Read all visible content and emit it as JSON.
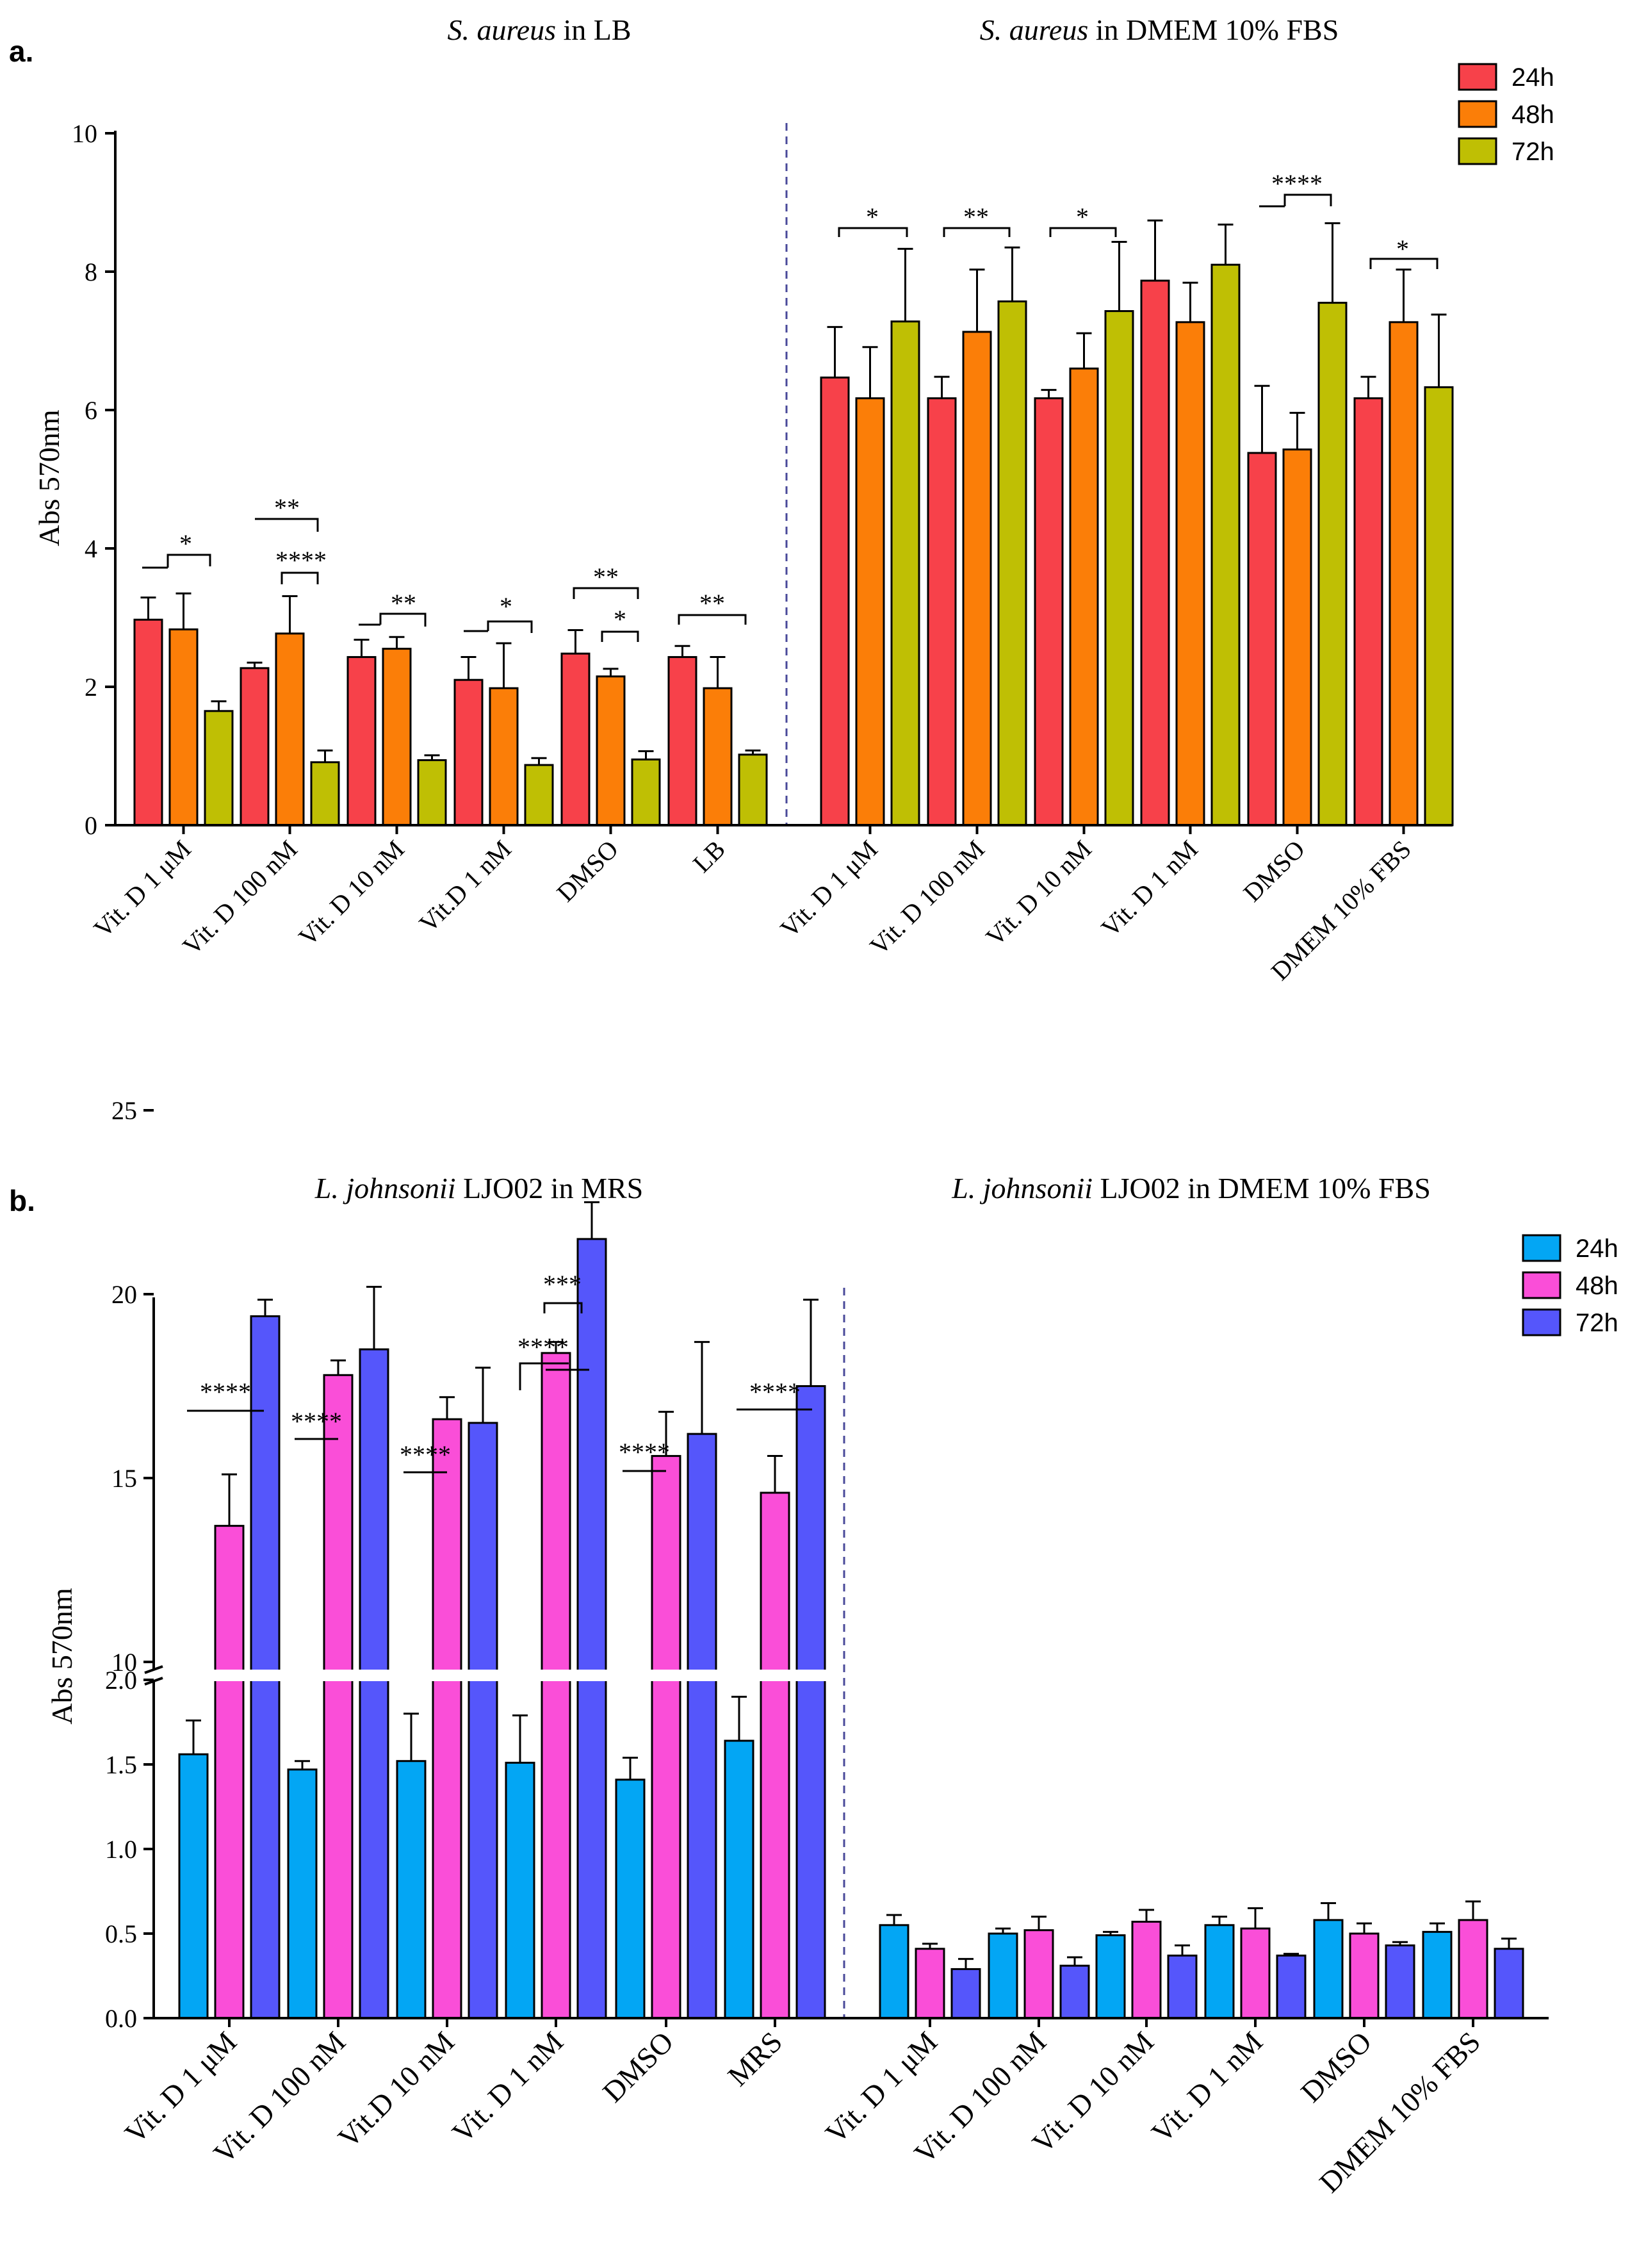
{
  "panels": [
    {
      "id": "a",
      "panel_label": "a.",
      "group_titles": [
        {
          "italic": "S. aureus",
          "rest": " in LB"
        },
        {
          "italic": "S. aureus",
          "rest": " in DMEM 10% FBS"
        }
      ]
    },
    {
      "id": "b",
      "panel_label": "b.",
      "group_titles": [
        {
          "italic": "L. johnsonii",
          "rest": " LJO02 in MRS"
        },
        {
          "italic": "L. johnsonii",
          "rest": " LJO02 in DMEM 10% FBS"
        }
      ]
    }
  ],
  "chart_data": [
    {
      "type": "bar",
      "panel": "a",
      "ylabel": "Abs 570nm",
      "xlabel": "",
      "ylim": [
        0,
        10
      ],
      "yticks": [
        "0",
        "2",
        "4",
        "6",
        "8",
        "10"
      ],
      "categories": [
        "Vit. D 1 μM",
        "Vit. D 100 nM",
        "Vit. D 10 nM",
        "Vit.D 1 nM",
        "DMSO",
        "LB",
        "Vit. D 1 μM",
        "Vit. D 100 nM",
        "Vit. D 10 nM",
        "Vit. D 1 nM",
        "DMSO",
        "DMEM 10% FBS"
      ],
      "legend": {
        "position": "top-right",
        "entries": [
          "24h",
          "48h",
          "72h"
        ]
      },
      "series": [
        {
          "name": "24h",
          "color": "#f7414a",
          "values": [
            2.97,
            2.27,
            2.43,
            2.1,
            2.48,
            2.43,
            6.47,
            6.17,
            6.17,
            7.87,
            5.38,
            6.17
          ],
          "errors": [
            0.32,
            0.08,
            0.25,
            0.33,
            0.34,
            0.16,
            0.73,
            0.31,
            0.12,
            0.87,
            0.97,
            0.31
          ]
        },
        {
          "name": "48h",
          "color": "#fb7e08",
          "values": [
            2.83,
            2.77,
            2.55,
            1.98,
            2.15,
            1.98,
            6.17,
            7.13,
            6.6,
            7.27,
            5.43,
            7.27
          ],
          "errors": [
            0.52,
            0.54,
            0.17,
            0.65,
            0.11,
            0.45,
            0.74,
            0.9,
            0.51,
            0.57,
            0.53,
            0.76
          ]
        },
        {
          "name": "72h",
          "color": "#bfbf04",
          "values": [
            1.65,
            0.91,
            0.94,
            0.87,
            0.95,
            1.02,
            7.28,
            7.57,
            7.43,
            8.1,
            7.55,
            6.33
          ],
          "errors": [
            0.14,
            0.17,
            0.07,
            0.1,
            0.12,
            0.06,
            1.05,
            0.78,
            1.0,
            0.58,
            1.15,
            1.05
          ]
        }
      ],
      "significance": [
        {
          "label": "*",
          "group": 0
        },
        {
          "label": "**",
          "group": 1
        },
        {
          "label": "****",
          "group": 1
        },
        {
          "label": "**",
          "group": 2
        },
        {
          "label": "*",
          "group": 3
        },
        {
          "label": "**",
          "group": 4
        },
        {
          "label": "*",
          "group": 4
        },
        {
          "label": "**",
          "group": 5
        },
        {
          "label": "*",
          "group": 6
        },
        {
          "label": "**",
          "group": 7
        },
        {
          "label": "*",
          "group": 8
        },
        {
          "label": "****",
          "group": 10
        },
        {
          "label": "*",
          "group": 11
        }
      ]
    },
    {
      "type": "bar",
      "panel": "b",
      "ylabel": "Abs 570nm",
      "xlabel": "",
      "axis_break": {
        "lower": [
          0,
          2.0
        ],
        "upper": [
          9.5,
          25
        ]
      },
      "yticks_lower": [
        "0.0",
        "0.5",
        "1.0",
        "1.5",
        "2.0"
      ],
      "yticks_upper": [
        "10",
        "15",
        "20",
        "25"
      ],
      "categories": [
        "Vit. D 1 μM",
        "Vit. D 100 nM",
        "Vit.D 10 nM",
        "Vit. D 1 nM",
        "DMSO",
        "MRS",
        "Vit. D 1 μM",
        "Vit. D 100 nM",
        "Vit. D 10 nM",
        "Vit. D 1 nM",
        "DMSO",
        "DMEM 10% FBS"
      ],
      "legend": {
        "position": "top-right",
        "entries": [
          "24h",
          "48h",
          "72h"
        ]
      },
      "series": [
        {
          "name": "24h",
          "color": "#03a6f4",
          "values": [
            1.56,
            1.47,
            1.52,
            1.51,
            1.41,
            1.64,
            0.55,
            0.5,
            0.49,
            0.55,
            0.58,
            0.51
          ],
          "errors": [
            0.2,
            0.05,
            0.28,
            0.28,
            0.13,
            0.26,
            0.06,
            0.03,
            0.02,
            0.05,
            0.1,
            0.05
          ]
        },
        {
          "name": "48h",
          "color": "#fa4ed8",
          "values": [
            13.7,
            17.8,
            16.6,
            18.4,
            15.6,
            14.6,
            0.41,
            0.52,
            0.57,
            0.53,
            0.5,
            0.58
          ],
          "errors": [
            1.4,
            0.4,
            0.6,
            0.3,
            1.2,
            1.0,
            0.03,
            0.08,
            0.07,
            0.12,
            0.06,
            0.11
          ]
        },
        {
          "name": "72h",
          "color": "#5556fb",
          "values": [
            19.4,
            18.5,
            16.5,
            21.5,
            16.2,
            17.5,
            0.29,
            0.31,
            0.37,
            0.37,
            0.43,
            0.41
          ],
          "errors": [
            0.45,
            1.7,
            1.5,
            1.0,
            2.5,
            2.35,
            0.06,
            0.05,
            0.06,
            0.01,
            0.02,
            0.06
          ]
        }
      ],
      "significance": [
        {
          "label": "****",
          "group": 0
        },
        {
          "label": "****",
          "group": 1
        },
        {
          "label": "****",
          "group": 2
        },
        {
          "label": "****",
          "group": 3
        },
        {
          "label": "***",
          "group": 3
        },
        {
          "label": "****",
          "group": 4
        },
        {
          "label": "****",
          "group": 5
        }
      ]
    }
  ]
}
